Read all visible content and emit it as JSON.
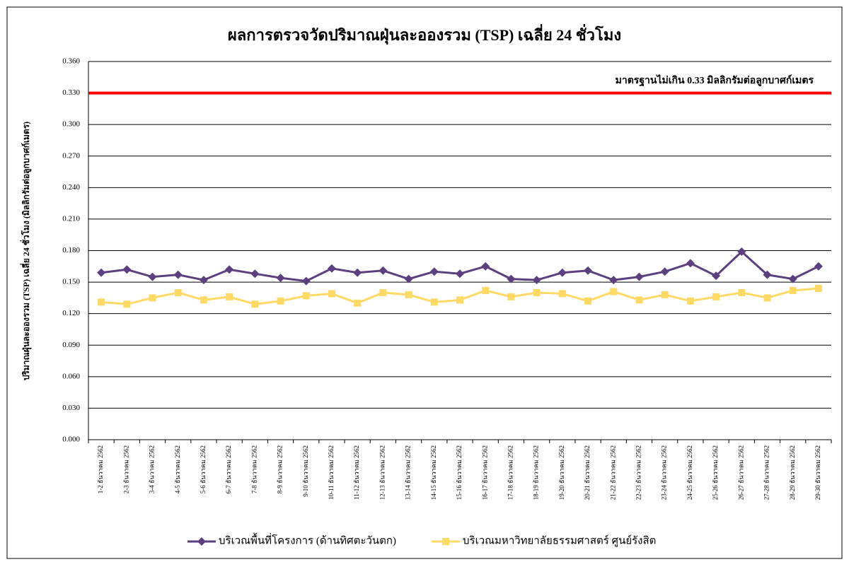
{
  "chart_data": {
    "type": "line",
    "title": "ผลการตรวจวัดปริมาณฝุ่นละอองรวม (TSP) เฉลี่ย 24 ชั่วโมง",
    "y_label": "ปริมาณฝุ่นละอองรวม (TSP) เฉลี่ย 24 ชั่วโมง (มิลลิกรัมต่อลูกบาศก์เมตร)",
    "categories": [
      "1-2 ธันวาคม 2562",
      "2-3 ธันวาคม 2562",
      "3-4 ธันวาคม 2562",
      "4-5 ธันวาคม 2562",
      "5-6 ธันวาคม 2562",
      "6-7 ธันวาคม 2562",
      "7-8 ธันวาคม 2562",
      "8-9 ธันวาคม 2562",
      "9-10 ธันวาคม 2562",
      "10-11 ธันวาคม 2562",
      "11-12 ธันวาคม 2562",
      "12-13 ธันวาคม 2562",
      "13-14 ธันวาคม 2562",
      "14-15 ธันวาคม 2562",
      "15-16 ธันวาคม 2562",
      "16-17 ธันวาคม 2562",
      "17-18 ธันวาคม 2562",
      "18-19 ธันวาคม 2562",
      "19-20 ธันวาคม 2562",
      "20-21 ธันวาคม 2562",
      "21-22 ธันวาคม 2562",
      "22-23 ธันวาคม 2562",
      "23-24 ธันวาคม 2562",
      "24-25 ธันวาคม 2562",
      "25-26 ธันวาคม 2562",
      "26-27 ธันวาคม 2562",
      "27-28 ธันวาคม 2562",
      "28-29 ธันวาคม 2562",
      "29-30 ธันวาคม 2562"
    ],
    "series": [
      {
        "name": "บริเวณพื้นที่โครงการ (ด้านทิศตะวันตก)",
        "color": "#5b3f7f",
        "marker": "diamond",
        "values": [
          0.159,
          0.162,
          0.155,
          0.157,
          0.152,
          0.162,
          0.158,
          0.154,
          0.151,
          0.163,
          0.159,
          0.161,
          0.153,
          0.16,
          0.158,
          0.165,
          0.153,
          0.152,
          0.159,
          0.161,
          0.152,
          0.155,
          0.16,
          0.168,
          0.156,
          0.179,
          0.157,
          0.153,
          0.165
        ]
      },
      {
        "name": "บริเวณมหาวิทยาลัยธรรมศาสตร์ ศูนย์รังสิต",
        "color": "#ffd966",
        "marker": "square",
        "values": [
          0.131,
          0.129,
          0.135,
          0.14,
          0.133,
          0.136,
          0.129,
          0.132,
          0.137,
          0.139,
          0.13,
          0.14,
          0.138,
          0.131,
          0.133,
          0.142,
          0.136,
          0.14,
          0.139,
          0.132,
          0.141,
          0.133,
          0.138,
          0.132,
          0.136,
          0.14,
          0.135,
          0.142,
          0.144
        ]
      }
    ],
    "threshold": {
      "value": 0.33,
      "label": "มาตรฐานไม่เกิน 0.33 มิลลิกรัมต่อลูกบาศก์เมตร",
      "color": "#ff0000"
    },
    "ylim": [
      0,
      0.36
    ],
    "yticks": [
      {
        "value": 0,
        "label": "0.000"
      },
      {
        "value": 0.03,
        "label": "0.030"
      },
      {
        "value": 0.06,
        "label": "0.060"
      },
      {
        "value": 0.09,
        "label": "0.090"
      },
      {
        "value": 0.12,
        "label": "0.120"
      },
      {
        "value": 0.15,
        "label": "0.150"
      },
      {
        "value": 0.18,
        "label": "0.180"
      },
      {
        "value": 0.21,
        "label": "0.210"
      },
      {
        "value": 0.24,
        "label": "0.240"
      },
      {
        "value": 0.27,
        "label": "0.270"
      },
      {
        "value": 0.3,
        "label": "0.300"
      },
      {
        "value": 0.33,
        "label": "0.330"
      },
      {
        "value": 0.36,
        "label": "0.360"
      }
    ],
    "grid": true
  }
}
